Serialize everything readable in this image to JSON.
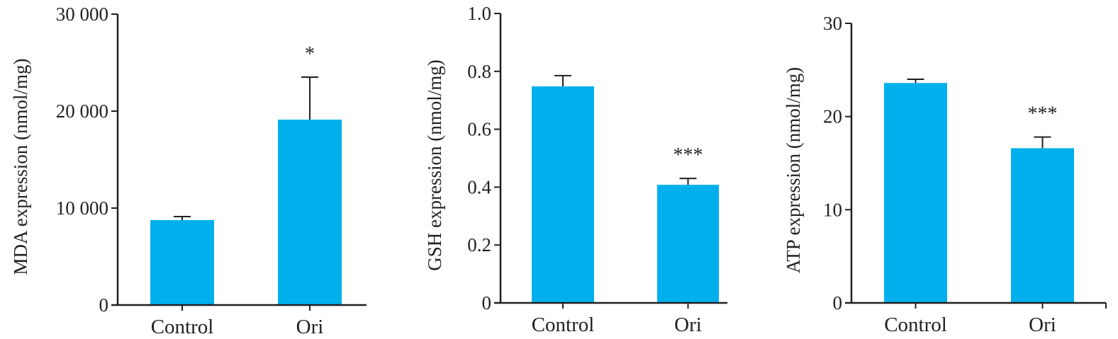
{
  "colors": {
    "bar": "#00b0ec",
    "axis": "#231f20"
  },
  "chart_data": [
    {
      "type": "bar",
      "title": "",
      "xlabel": "",
      "ylabel": "MDA expression (nmol/mg)",
      "categories": [
        "Control",
        "Ori"
      ],
      "values": [
        8760,
        19120
      ],
      "error_upper": [
        9120,
        23500
      ],
      "significance": [
        "",
        "*"
      ],
      "ylim": [
        0,
        30000
      ],
      "yticks": [
        0,
        10000,
        20000,
        30000
      ],
      "ytick_labels": [
        "0",
        "10 000",
        "20 000",
        "30 000"
      ],
      "grid": false
    },
    {
      "type": "bar",
      "title": "",
      "xlabel": "",
      "ylabel": "GSH expression (nmol/mg)",
      "categories": [
        "Control",
        "Ori"
      ],
      "values": [
        0.748,
        0.408
      ],
      "error_upper": [
        0.785,
        0.43
      ],
      "significance": [
        "",
        "***"
      ],
      "ylim": [
        0,
        1.0
      ],
      "yticks": [
        0,
        0.2,
        0.4,
        0.6,
        0.8,
        1.0
      ],
      "ytick_labels": [
        "0",
        "0.2",
        "0.4",
        "0.6",
        "0.8",
        "1.0"
      ],
      "grid": false
    },
    {
      "type": "bar",
      "title": "",
      "xlabel": "",
      "ylabel": "ATP expression (nmol/mg)",
      "categories": [
        "Control",
        "Ori"
      ],
      "values": [
        23.6,
        16.6
      ],
      "error_upper": [
        24.0,
        17.8
      ],
      "significance": [
        "",
        "***"
      ],
      "ylim": [
        0,
        30
      ],
      "yticks": [
        0,
        10,
        20,
        30
      ],
      "ytick_labels": [
        "0",
        "10",
        "20",
        "30"
      ],
      "grid": false
    }
  ]
}
